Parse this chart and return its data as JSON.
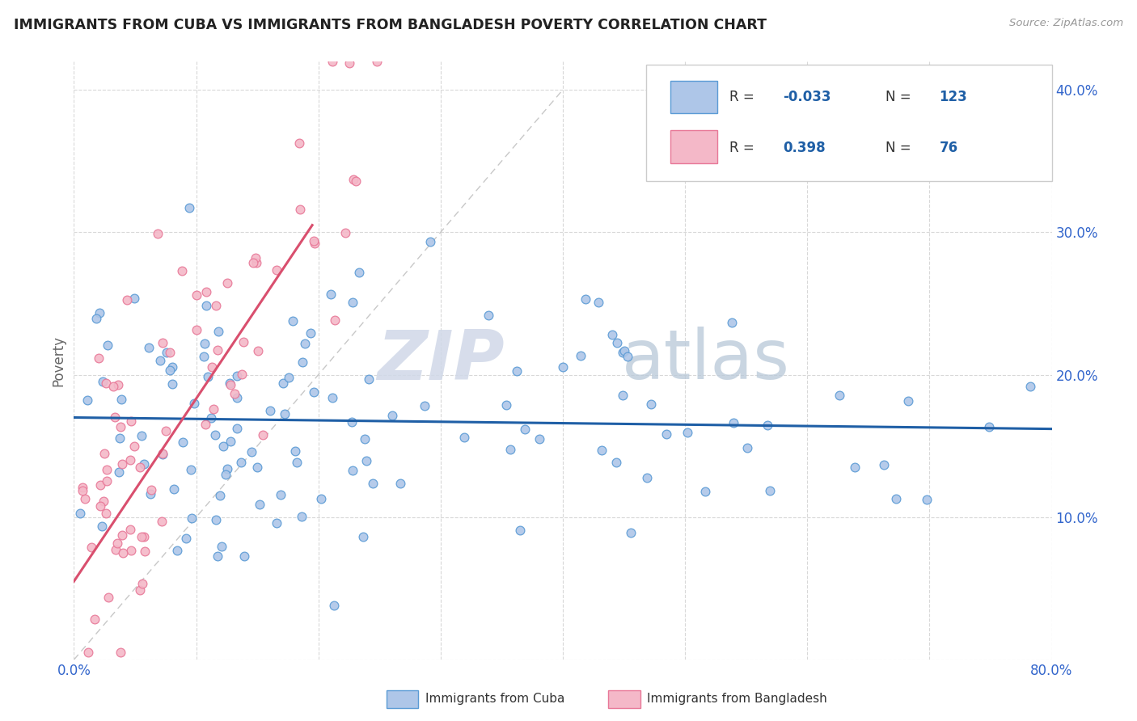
{
  "title": "IMMIGRANTS FROM CUBA VS IMMIGRANTS FROM BANGLADESH POVERTY CORRELATION CHART",
  "source_text": "Source: ZipAtlas.com",
  "ylabel": "Poverty",
  "xlim": [
    0.0,
    0.8
  ],
  "ylim": [
    0.0,
    0.42
  ],
  "cuba_color": "#aec6e8",
  "cuba_edge_color": "#5b9bd5",
  "bangladesh_color": "#f4b8c8",
  "bangladesh_edge_color": "#e87898",
  "cuba_line_color": "#1f5fa6",
  "bangladesh_line_color": "#d94f6e",
  "cuba_R": -0.033,
  "cuba_N": 123,
  "bangladesh_R": 0.398,
  "bangladesh_N": 76,
  "watermark_zip": "ZIP",
  "watermark_atlas": "atlas",
  "legend_R_color": "#1f5fa6",
  "legend_label_cuba": "Immigrants from Cuba",
  "legend_label_bangladesh": "Immigrants from Bangladesh",
  "cuba_line_x0": 0.0,
  "cuba_line_x1": 0.8,
  "cuba_line_y0": 0.17,
  "cuba_line_y1": 0.162,
  "bangladesh_line_x0": 0.0,
  "bangladesh_line_x1": 0.195,
  "bangladesh_line_y0": 0.055,
  "bangladesh_line_y1": 0.305
}
